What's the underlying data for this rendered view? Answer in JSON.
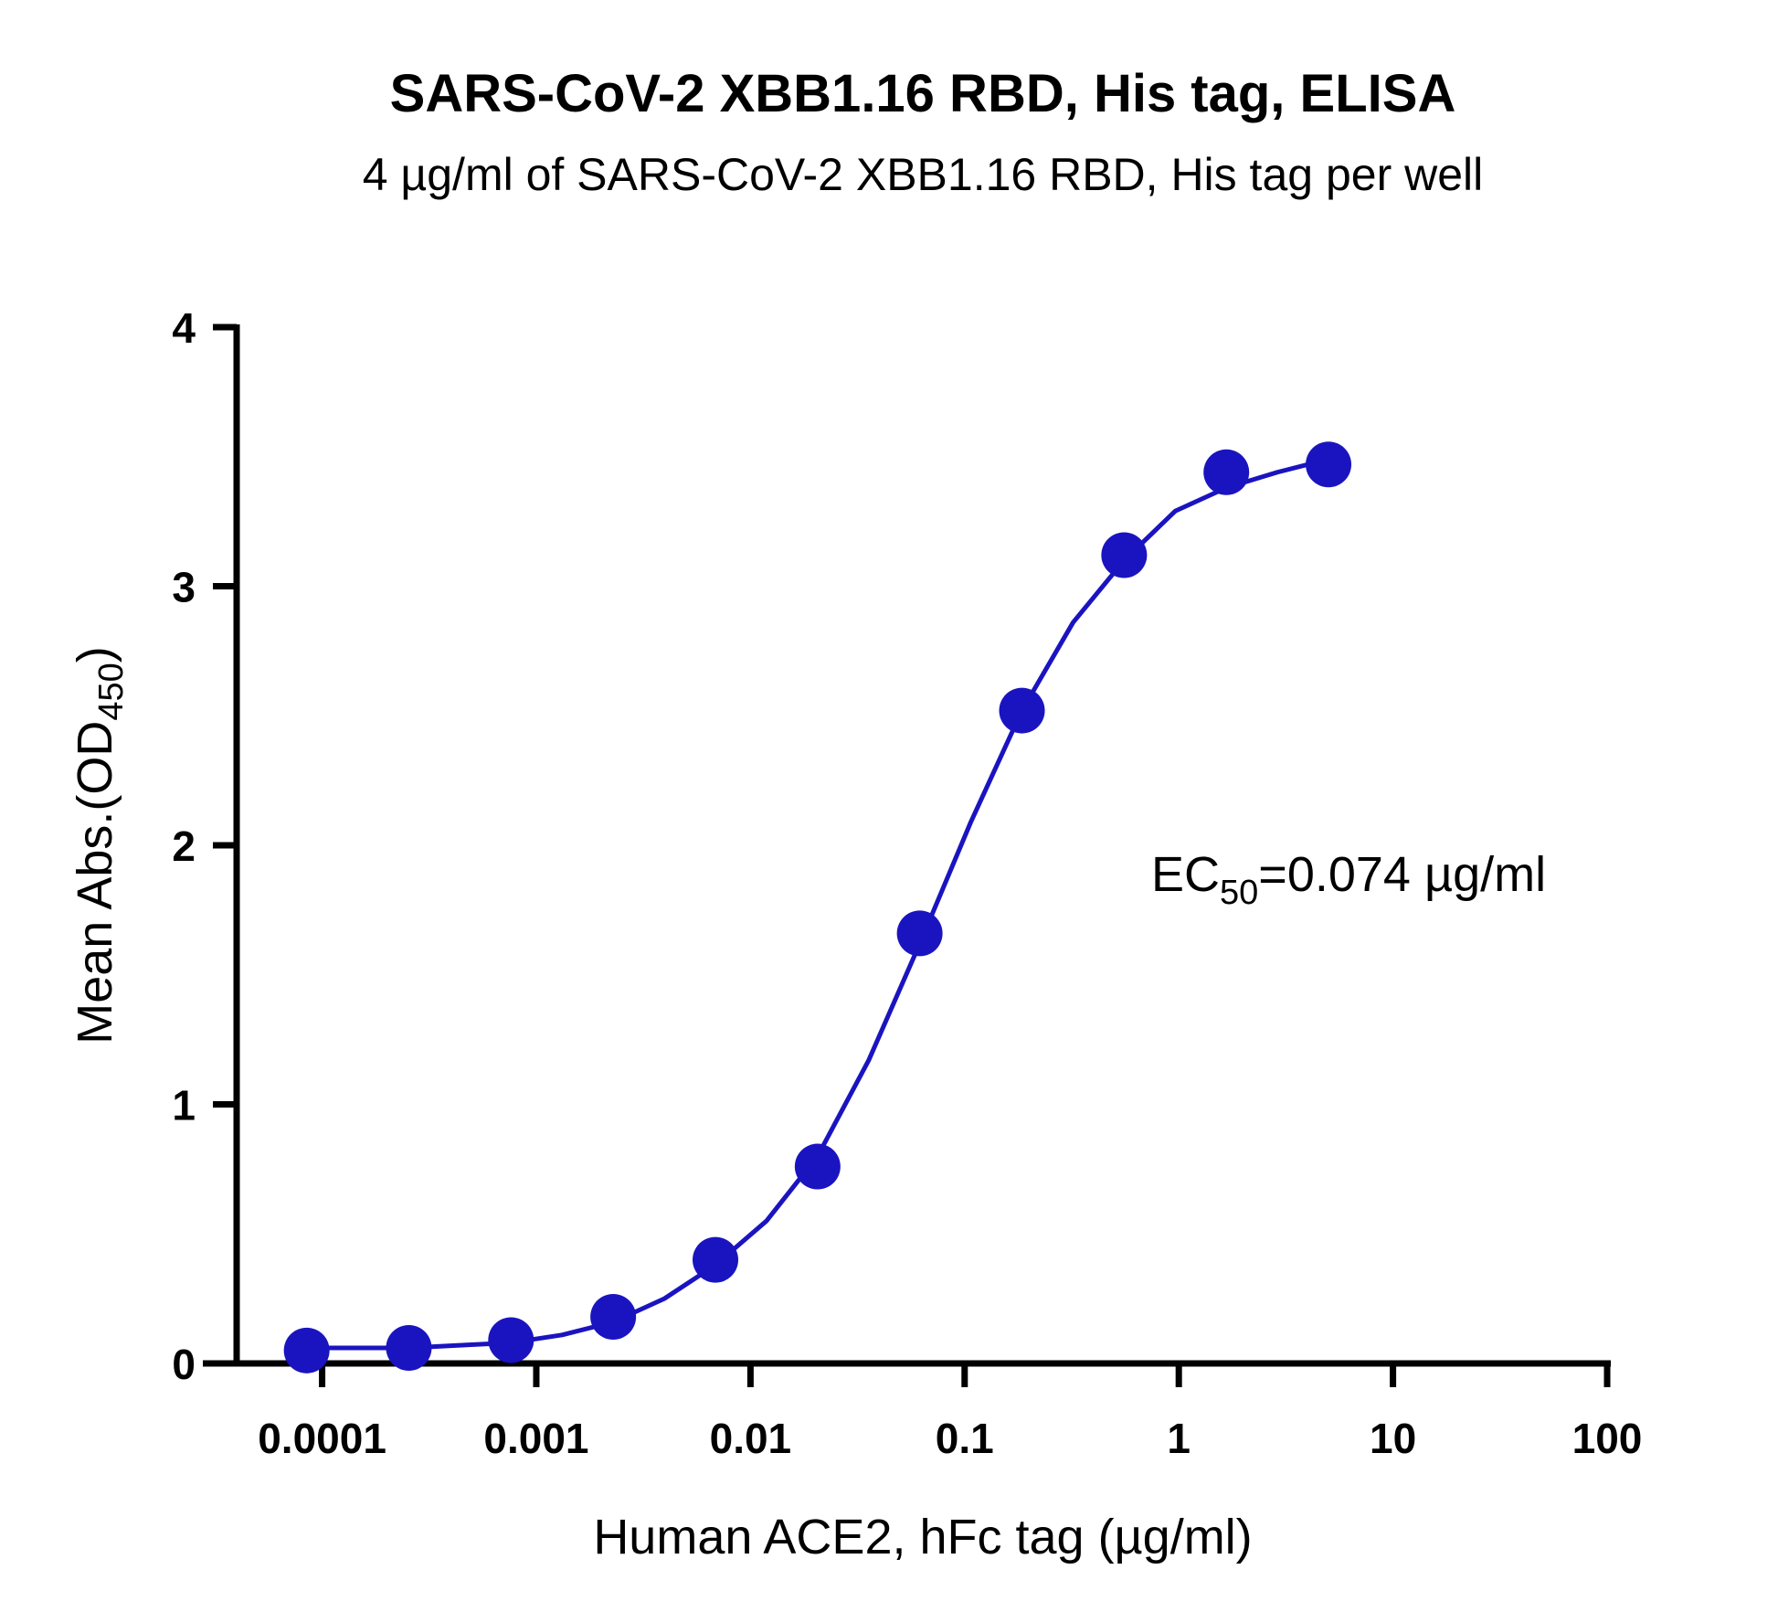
{
  "chart_data": {
    "type": "scatter",
    "title": "SARS-CoV-2 XBB1.16 RBD, His tag, ELISA",
    "subtitle": "4 µg/ml of SARS-CoV-2 XBB1.16 RBD, His tag per well",
    "x_label": "Human ACE2, hFc tag (µg/ml)",
    "y_label": {
      "main": "Mean Abs.(OD",
      "sub": "450",
      "rest": ")"
    },
    "annotation": {
      "main": "EC",
      "sub": "50",
      "rest": "=0.074 µg/ml"
    },
    "log_x": true,
    "xlim": [
      3e-05,
      100
    ],
    "xticks": [
      {
        "value": 0.0001,
        "label": "0.0001"
      },
      {
        "value": 0.001,
        "label": "0.001"
      },
      {
        "value": 0.01,
        "label": "0.01"
      },
      {
        "value": 0.1,
        "label": "0.1"
      },
      1,
      10,
      100
    ],
    "ylim": [
      0,
      4
    ],
    "yticks": [
      0,
      1,
      2,
      3,
      4
    ],
    "series": [
      {
        "color": "#1a14c0",
        "marker": true,
        "x": [
          8.47e-05,
          0.000254,
          0.000762,
          0.002286,
          0.00686,
          0.02058,
          0.0617,
          0.1852,
          0.5556,
          1.667,
          5
        ],
        "values": [
          0.05,
          0.06,
          0.09,
          0.18,
          0.4,
          0.76,
          1.66,
          2.52,
          3.12,
          3.44,
          3.47
        ]
      },
      {
        "color": "#1a14c0",
        "marker": false,
        "x": [
          8.47e-05,
          0.0001467,
          0.000254,
          0.00044,
          0.000762,
          0.00132,
          0.002286,
          0.00396,
          0.00686,
          0.01188,
          0.02058,
          0.03564,
          0.0617,
          0.1069,
          0.1852,
          0.3208,
          0.5556,
          0.962,
          1.667,
          2.887,
          5
        ],
        "values": [
          0.06,
          0.06,
          0.06,
          0.07,
          0.08,
          0.11,
          0.16,
          0.25,
          0.38,
          0.55,
          0.8,
          1.17,
          1.62,
          2.09,
          2.52,
          2.86,
          3.1,
          3.29,
          3.38,
          3.44,
          3.49
        ]
      }
    ]
  }
}
